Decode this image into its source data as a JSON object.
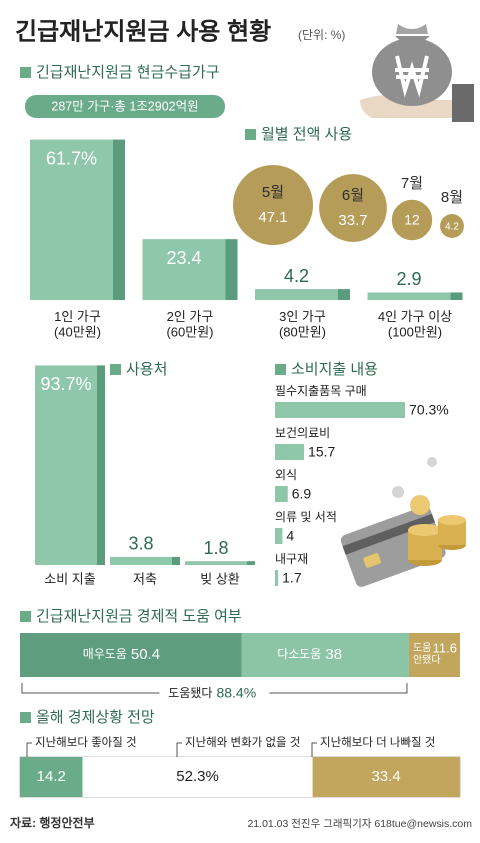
{
  "title": "긴급재난지원금 사용 현황",
  "unit": "(단위: %)",
  "chart_data": [
    {
      "type": "bar",
      "title": "긴급재난지원금 현금수급가구",
      "subtitle": "287만 가구·총 1조2902억원",
      "categories": [
        "1인 가구\n(40만원)",
        "2인 가구\n(60만원)",
        "3인 가구\n(80만원)",
        "4인 가구 이상\n(100만원)"
      ],
      "values": [
        61.7,
        23.4,
        4.2,
        2.9
      ],
      "value_labels": [
        "61.7%",
        "23.4",
        "4.2",
        "2.9"
      ],
      "color": "#8fc7aa"
    },
    {
      "type": "bubble",
      "title": "월별 전액 사용",
      "categories": [
        "5월",
        "6월",
        "7월",
        "8월"
      ],
      "values": [
        47.1,
        33.7,
        12,
        4.2
      ],
      "color": "#b59c58"
    },
    {
      "type": "bar",
      "title": "사용처",
      "categories": [
        "소비 지출",
        "저축",
        "빚 상환"
      ],
      "values": [
        93.7,
        3.8,
        1.8
      ],
      "value_labels": [
        "93.7%",
        "3.8",
        "1.8"
      ],
      "color": "#8fc7aa"
    },
    {
      "type": "hbar",
      "title": "소비지출 내용",
      "categories": [
        "필수지출품목 구매",
        "보건의료비",
        "외식",
        "의류 및 서적",
        "내구재"
      ],
      "values": [
        70.3,
        15.7,
        6.9,
        4,
        1.7
      ],
      "value_labels": [
        "70.3%",
        "15.7",
        "6.9",
        "4",
        "1.7"
      ],
      "color": "#8fc7aa"
    },
    {
      "type": "stacked_bar",
      "title": "긴급재난지원금 경제적 도움 여부",
      "series": [
        {
          "name": "매우도움",
          "color": "#5e9e7e",
          "values": [
            50.4
          ]
        },
        {
          "name": "다소도움",
          "color": "#8cc4a6",
          "values": [
            38
          ]
        },
        {
          "name": "도움\n안됐다",
          "color": "#c2a65e",
          "values": [
            11.6
          ]
        }
      ],
      "total_label": "도움됐다",
      "total": 88.4,
      "total_value_label": "88.4%"
    },
    {
      "type": "stacked_bar",
      "title": "올해 경제상황 전망",
      "series": [
        {
          "name": "지난해보다 좋아질 것",
          "color": "#6aab8a",
          "values": [
            14.2
          ]
        },
        {
          "name": "지난해와 변화가 없을 것",
          "color": "#ffffff",
          "values": [
            52.3
          ],
          "value_labels": [
            "52.3%"
          ]
        },
        {
          "name": "지난해보다 더 나빠질 것",
          "color": "#c2a65e",
          "values": [
            33.4
          ]
        }
      ]
    }
  ],
  "source": "자료: 행정안전부",
  "credit": "21.01.03 전진우 그래픽기자 618tue@newsis.com"
}
